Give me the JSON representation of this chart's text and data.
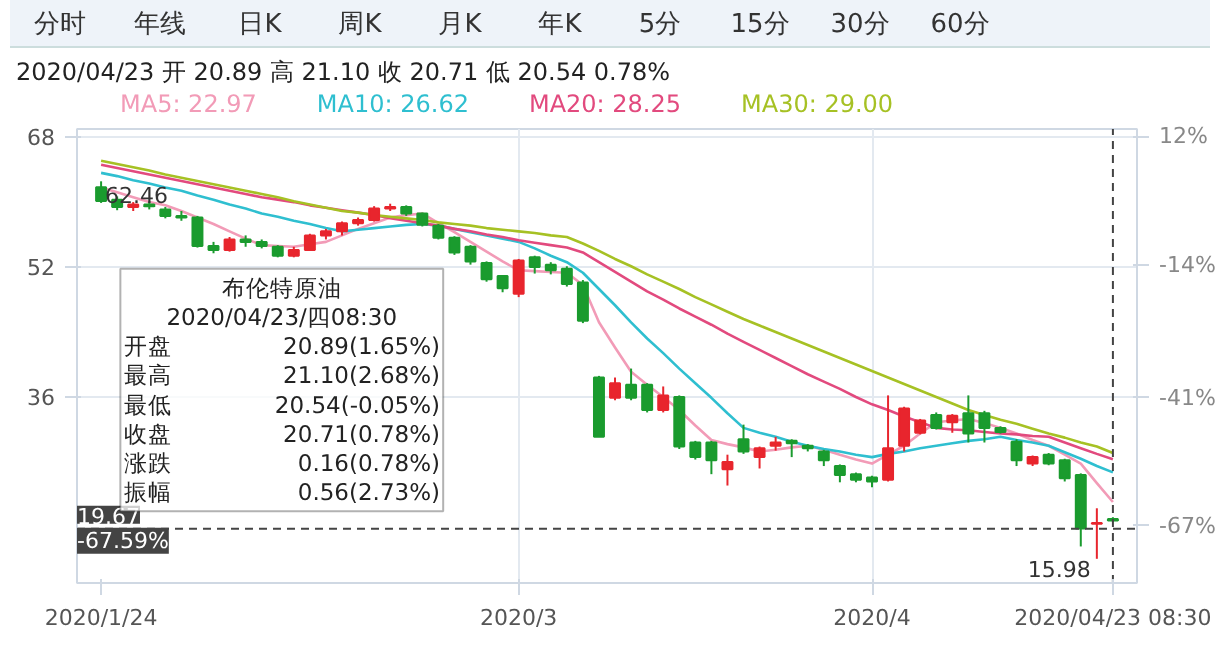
{
  "chart_data": {
    "type": "candlestick",
    "annotations": [
      "分时 年线 日K 周K 月K 年K 5分 15分 30分 60分",
      "2020/04/23 开 20.89 高 21.10 收 20.71 低 20.54 0.78%",
      "布伦特原油\n2020/04/23/四08:30\n开盘 20.89(1.65%)\n最高 21.10(2.68%)\n最低 20.54(-0.05%)\n收盘 20.71(0.78%)\n涨跌 0.16(0.78%)\n振幅 0.56(2.73%)",
      "62.46",
      "15.98"
    ],
    "categories": [
      "2020/1/24",
      null,
      null,
      null,
      null,
      null,
      null,
      null,
      null,
      null,
      null,
      null,
      null,
      null,
      null,
      null,
      null,
      null,
      null,
      null,
      null,
      null,
      null,
      null,
      null,
      null,
      "2020/3",
      null,
      null,
      null,
      null,
      null,
      null,
      null,
      null,
      null,
      null,
      null,
      null,
      null,
      null,
      null,
      null,
      null,
      null,
      null,
      null,
      null,
      "2020/4",
      null,
      null,
      null,
      null,
      null,
      null,
      null,
      null,
      null,
      null,
      null,
      null,
      null,
      null,
      "2020/04/23 08:30"
    ],
    "ohlc": [
      [
        61.72,
        62.46,
        59.8,
        60.04
      ],
      [
        60.2,
        60.6,
        58.9,
        59.3
      ],
      [
        59.3,
        59.9,
        58.8,
        59.6
      ],
      [
        59.6,
        60.0,
        59.0,
        59.4
      ],
      [
        59.0,
        59.3,
        57.9,
        58.2
      ],
      [
        58.2,
        58.8,
        57.6,
        58.0
      ],
      [
        58.0,
        58.2,
        54.3,
        54.5
      ],
      [
        54.5,
        55.0,
        53.6,
        54.0
      ],
      [
        54.0,
        55.6,
        53.8,
        55.3
      ],
      [
        55.3,
        55.8,
        54.4,
        55.0
      ],
      [
        55.0,
        55.3,
        54.2,
        54.5
      ],
      [
        54.4,
        54.6,
        53.1,
        53.3
      ],
      [
        53.3,
        54.4,
        53.1,
        54.0
      ],
      [
        54.0,
        56.0,
        53.9,
        55.8
      ],
      [
        55.8,
        56.6,
        55.3,
        56.3
      ],
      [
        56.3,
        57.5,
        55.8,
        57.3
      ],
      [
        57.3,
        58.0,
        57.0,
        57.7
      ],
      [
        57.7,
        59.4,
        57.5,
        59.1
      ],
      [
        59.1,
        59.7,
        58.8,
        59.3
      ],
      [
        59.3,
        59.5,
        58.2,
        58.5
      ],
      [
        58.5,
        58.6,
        56.9,
        57.1
      ],
      [
        57.0,
        57.2,
        55.3,
        55.5
      ],
      [
        55.5,
        55.7,
        53.4,
        53.7
      ],
      [
        54.4,
        54.6,
        52.2,
        52.6
      ],
      [
        52.4,
        52.6,
        50.1,
        50.4
      ],
      [
        50.8,
        50.9,
        48.8,
        49.3
      ],
      [
        48.6,
        52.9,
        48.2,
        52.7
      ],
      [
        53.1,
        53.3,
        51.1,
        51.9
      ],
      [
        52.2,
        52.5,
        51.0,
        51.5
      ],
      [
        51.7,
        52.0,
        49.5,
        49.8
      ],
      [
        50.0,
        50.3,
        45.0,
        45.3
      ],
      [
        38.3,
        38.5,
        31.0,
        31.0
      ],
      [
        35.8,
        38.3,
        35.5,
        37.6
      ],
      [
        37.4,
        39.4,
        35.5,
        35.8
      ],
      [
        37.4,
        37.6,
        34.0,
        34.3
      ],
      [
        34.3,
        37.2,
        34.0,
        36.1
      ],
      [
        35.9,
        36.1,
        29.5,
        29.8
      ],
      [
        30.3,
        30.5,
        28.2,
        28.5
      ],
      [
        30.3,
        30.5,
        26.4,
        28.1
      ],
      [
        27.0,
        28.8,
        25.0,
        27.9
      ],
      [
        30.7,
        32.5,
        28.9,
        29.2
      ],
      [
        28.5,
        29.8,
        27.1,
        29.6
      ],
      [
        29.9,
        31.0,
        29.3,
        30.3
      ],
      [
        30.5,
        30.7,
        28.5,
        30.2
      ],
      [
        29.9,
        30.1,
        29.2,
        29.6
      ],
      [
        29.2,
        29.4,
        27.4,
        28.1
      ],
      [
        27.4,
        27.6,
        25.4,
        26.3
      ],
      [
        26.4,
        26.6,
        25.4,
        25.7
      ],
      [
        26.0,
        26.2,
        24.8,
        25.5
      ],
      [
        25.7,
        36.1,
        25.5,
        29.6
      ],
      [
        29.9,
        34.7,
        29.2,
        34.5
      ],
      [
        31.5,
        33.2,
        31.3,
        33.0
      ],
      [
        33.7,
        34.0,
        31.9,
        32.1
      ],
      [
        32.8,
        33.8,
        31.5,
        33.6
      ],
      [
        33.9,
        36.1,
        30.3,
        31.4
      ],
      [
        33.9,
        34.2,
        30.3,
        32.1
      ],
      [
        32.1,
        32.3,
        31.4,
        31.6
      ],
      [
        30.4,
        30.7,
        27.4,
        28.1
      ],
      [
        27.7,
        28.7,
        27.4,
        28.5
      ],
      [
        28.8,
        29.0,
        27.5,
        27.7
      ],
      [
        28.1,
        28.3,
        25.5,
        25.9
      ],
      [
        26.3,
        26.5,
        17.5,
        19.7
      ],
      [
        20.3,
        22.2,
        15.98,
        20.4
      ],
      [
        20.89,
        21.1,
        20.54,
        20.71
      ]
    ],
    "series": [
      {
        "name": "MA5: 22.97",
        "type": "line",
        "color": "#f29bb7",
        "values": [
          61.7,
          61.1,
          60.5,
          59.9,
          59.5,
          58.8,
          58.0,
          57.2,
          56.3,
          55.4,
          54.6,
          54.5,
          54.4,
          54.7,
          55.0,
          55.8,
          56.6,
          57.3,
          58.0,
          58.3,
          58.5,
          57.3,
          56.2,
          55.0,
          53.8,
          52.6,
          51.5,
          51.4,
          51.3,
          51.2,
          49.7,
          45.1,
          42.0,
          39.0,
          37.4,
          35.9,
          34.3,
          32.4,
          30.6,
          30.1,
          29.7,
          29.2,
          29.4,
          29.7,
          29.9,
          29.4,
          28.8,
          28.2,
          27.7,
          28.8,
          29.9,
          31.4,
          32.8,
          33.0,
          33.2,
          32.7,
          32.1,
          31.4,
          30.6,
          29.9,
          28.8,
          27.7,
          25.3,
          22.97
        ]
      },
      {
        "name": "MA10: 26.62",
        "type": "line",
        "color": "#2fbfd0",
        "values": [
          63.5,
          63.1,
          62.6,
          62.2,
          61.7,
          61.3,
          60.7,
          60.2,
          59.6,
          59.1,
          58.5,
          58.1,
          57.6,
          57.2,
          56.7,
          56.3,
          56.5,
          56.7,
          56.9,
          57.1,
          57.2,
          57.0,
          56.6,
          56.2,
          55.8,
          55.4,
          55.0,
          54.2,
          53.3,
          52.5,
          51.2,
          49.2,
          47.2,
          45.1,
          43.1,
          41.3,
          39.4,
          37.6,
          35.8,
          33.9,
          32.1,
          31.5,
          31.0,
          30.4,
          29.9,
          29.5,
          29.2,
          28.8,
          28.5,
          28.9,
          29.2,
          29.6,
          29.9,
          30.2,
          30.5,
          30.7,
          31.0,
          30.6,
          30.3,
          29.9,
          29.1,
          28.3,
          27.4,
          26.62
        ]
      },
      {
        "name": "MA20: 28.25",
        "type": "line",
        "color": "#e24a7e",
        "values": [
          64.5,
          64.1,
          63.7,
          63.3,
          62.9,
          62.5,
          62.1,
          61.7,
          61.3,
          60.9,
          60.5,
          60.2,
          59.9,
          59.5,
          59.2,
          58.9,
          58.6,
          58.3,
          57.9,
          57.6,
          57.3,
          57.0,
          56.6,
          56.3,
          55.9,
          55.6,
          55.2,
          54.9,
          54.6,
          54.3,
          53.7,
          52.5,
          51.3,
          50.1,
          48.9,
          47.9,
          46.8,
          45.8,
          44.8,
          43.7,
          42.7,
          41.7,
          40.7,
          39.7,
          38.7,
          37.8,
          36.9,
          35.9,
          35.0,
          34.3,
          33.5,
          32.8,
          32.1,
          31.9,
          31.8,
          31.6,
          31.4,
          31.3,
          31.1,
          31.0,
          30.3,
          29.6,
          28.9,
          28.25
        ]
      },
      {
        "name": "MA30: 29.00",
        "type": "line",
        "color": "#a6c124",
        "values": [
          65.0,
          64.6,
          64.2,
          63.8,
          63.3,
          62.9,
          62.5,
          62.1,
          61.7,
          61.3,
          60.9,
          60.5,
          60.0,
          59.6,
          59.2,
          58.8,
          58.6,
          58.3,
          58.1,
          57.9,
          57.7,
          57.4,
          57.2,
          57.0,
          56.7,
          56.5,
          56.3,
          56.1,
          55.8,
          55.6,
          54.8,
          53.9,
          52.9,
          52.0,
          51.0,
          50.1,
          49.2,
          48.2,
          47.3,
          46.4,
          45.5,
          44.7,
          43.9,
          43.1,
          42.3,
          41.5,
          40.7,
          39.9,
          39.1,
          38.3,
          37.5,
          36.7,
          35.9,
          35.1,
          34.3,
          33.7,
          33.1,
          32.6,
          32.0,
          31.4,
          30.9,
          30.3,
          29.8,
          29.0
        ]
      }
    ],
    "ylim": [
      13.0,
      68.9
    ],
    "yticks": [
      68,
      52,
      36
    ],
    "y2lim": [
      -78.6,
      13.5
    ],
    "y2ticks": [
      {
        "value": 12,
        "label": "12%"
      },
      {
        "value": -14,
        "label": "-14%"
      },
      {
        "value": -41,
        "label": "-41%"
      },
      {
        "value": -67,
        "label": "-67%"
      }
    ],
    "ref_lines": [
      {
        "axis": "y",
        "value": 19.67,
        "label": "19.67\n-67.59%",
        "line_style": "dashed"
      },
      {
        "axis": "x",
        "value": "2020/04/23 08:30",
        "line_style": "dashed"
      }
    ],
    "grid": true,
    "legend": "top"
  }
}
